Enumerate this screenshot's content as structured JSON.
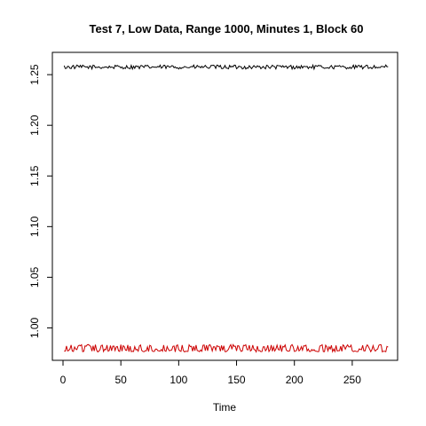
{
  "chart_data": {
    "type": "line",
    "title": "Test 7, Low Data, Range 1000, Minutes 1, Block 60",
    "xlabel": "Time",
    "ylabel": "",
    "xlim": [
      0,
      280
    ],
    "ylim": [
      0.968,
      1.272
    ],
    "x_ticks": [
      0,
      50,
      100,
      150,
      200,
      250
    ],
    "y_ticks": [
      1.0,
      1.05,
      1.1,
      1.15,
      1.2,
      1.25
    ],
    "x_tick_labels": [
      "0",
      "50",
      "100",
      "150",
      "200",
      "250"
    ],
    "y_tick_labels": [
      "1.00",
      "1.05",
      "1.10",
      "1.15",
      "1.20",
      "1.25"
    ],
    "grid": false,
    "series": [
      {
        "color": "#000000",
        "x_start": 1,
        "x_end": 281,
        "base": 1.2575,
        "amplitude": 0.002,
        "pattern": "small-noise"
      },
      {
        "color": "#cc0000",
        "x_start": 1,
        "x_end": 281,
        "base": 0.9775,
        "amplitude": 0.006,
        "pattern": "spiky-noise"
      }
    ]
  }
}
